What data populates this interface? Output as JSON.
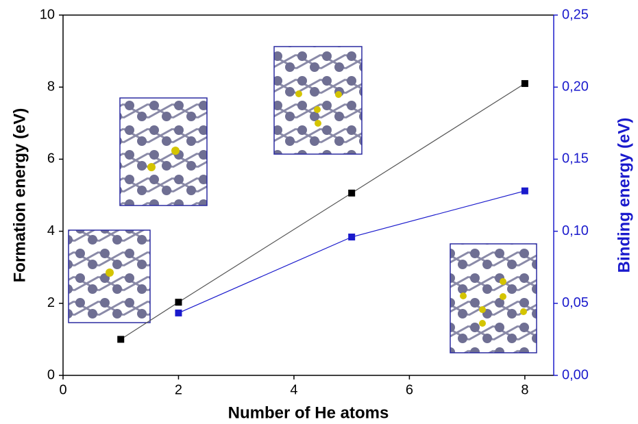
{
  "chart_data": {
    "type": "line",
    "x_label": "Number of He atoms",
    "y_label": "Formation energy (eV)",
    "y2_label": "Binding energy (eV)",
    "xlim": [
      0,
      8.5
    ],
    "xticks": [
      0,
      2,
      4,
      6,
      8
    ],
    "ylim": [
      0,
      10
    ],
    "yticks": [
      0,
      2,
      4,
      6,
      8,
      10
    ],
    "y2lim": [
      0,
      0.25
    ],
    "y2ticks": [
      {
        "value": 0,
        "label": "0,00"
      },
      {
        "value": 0.05,
        "label": "0,05"
      },
      {
        "value": 0.1,
        "label": "0,10"
      },
      {
        "value": 0.15,
        "label": "0,15"
      },
      {
        "value": 0.2,
        "label": "0,20"
      },
      {
        "value": 0.25,
        "label": "0,25"
      }
    ],
    "y2_color": "#1a1acc",
    "series": [
      {
        "color": "#000000",
        "line_color": "#555555",
        "x": [
          1,
          2,
          5,
          8
        ],
        "values": [
          1.0,
          2.03,
          5.06,
          8.1
        ]
      },
      {
        "color": "#1a1acc",
        "line_color": "#1a1acc",
        "axis": "y2",
        "x": [
          2,
          5,
          8
        ],
        "values": [
          0.0433,
          0.096,
          0.128
        ]
      }
    ]
  }
}
